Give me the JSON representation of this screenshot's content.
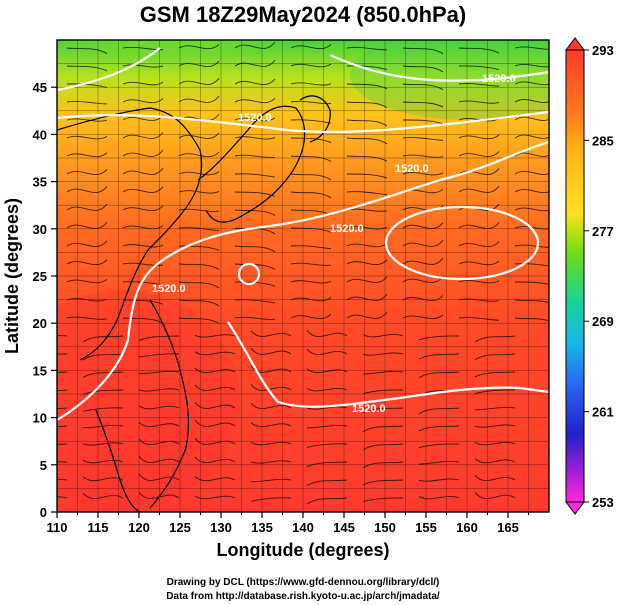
{
  "title": "GSM 18Z29May2024 (850.0hPa)",
  "xlabel": "Longitude (degrees)",
  "ylabel": "Latitude  (degrees)",
  "xticks": [
    "110",
    "115",
    "120",
    "125",
    "130",
    "135",
    "140",
    "145",
    "150",
    "155",
    "160",
    "165"
  ],
  "yticks": [
    "0",
    "5",
    "10",
    "15",
    "20",
    "25",
    "30",
    "35",
    "40",
    "45"
  ],
  "colorbar": {
    "ticks": [
      "293",
      "285",
      "277",
      "269",
      "261",
      "253"
    ],
    "colors": [
      "#ff3b2f",
      "#ff8a1c",
      "#ffd21a",
      "#6ddc1a",
      "#19d28a",
      "#17b6e8",
      "#2b5ff0",
      "#2121c9",
      "#9b1fd6",
      "#ff2ad9"
    ]
  },
  "contour_labels": [
    "1520.0",
    "1520.0",
    "1520.0",
    "1520.0",
    "1520.0",
    "1520.0"
  ],
  "credits": [
    "Drawing by DCL (https://www.gfd-dennou.org/library/dcl/)",
    "Data from http://database.rish.kyoto-u.ac.jp/arch/jmadata/"
  ],
  "map_data": {
    "type": "field",
    "variable": "temperature",
    "level": "850.0hPa",
    "lon_range": [
      110,
      170
    ],
    "lat_range": [
      0,
      50
    ],
    "color_range": [
      253,
      293
    ]
  }
}
